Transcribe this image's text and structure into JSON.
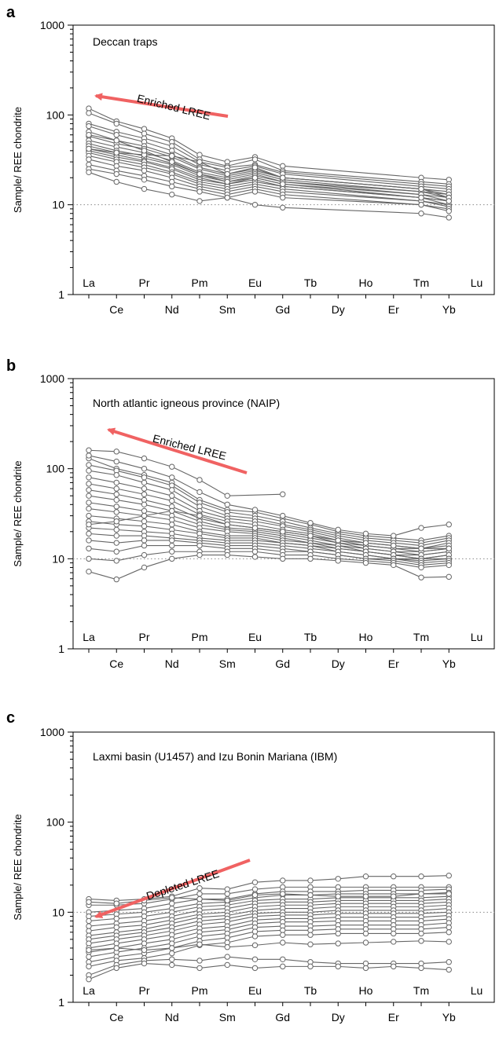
{
  "figure": {
    "ylabel": "Sample/ REE chondrite",
    "elements_top": [
      "La",
      "Pr",
      "Pm",
      "Eu",
      "Tb",
      "Ho",
      "Tm",
      "Lu"
    ],
    "elements_bottom": [
      "Ce",
      "Nd",
      "Sm",
      "Gd",
      "Dy",
      "Er",
      "Yb"
    ],
    "y_ticks": [
      "1",
      "10",
      "100",
      "1000"
    ]
  },
  "chart_data": [
    {
      "panel_letter": "a",
      "type": "line",
      "yscale": "log",
      "ylim": [
        1,
        1000
      ],
      "reference_line": 10,
      "title": "Deccan traps",
      "annotation": {
        "text": "Enriched LREE",
        "color": "#f06262",
        "direction": "toward La"
      },
      "x": [
        "La",
        "Ce",
        "Pr",
        "Nd",
        "Sm",
        "Eu",
        "Gd",
        "Tb",
        "Dy",
        "Ho",
        "Er",
        "Tm",
        "Yb",
        "Lu"
      ],
      "series": [
        {
          "values": [
            118,
            85,
            70,
            55,
            36,
            30,
            34,
            27,
            null,
            null,
            null,
            null,
            20,
            19
          ]
        },
        {
          "values": [
            105,
            80,
            62,
            50,
            32,
            27,
            32,
            24,
            null,
            null,
            null,
            null,
            18,
            17
          ]
        },
        {
          "values": [
            80,
            65,
            55,
            45,
            30,
            26,
            28,
            23,
            null,
            null,
            null,
            null,
            17,
            16
          ]
        },
        {
          "values": [
            75,
            60,
            50,
            40,
            28,
            24,
            27,
            22,
            null,
            null,
            null,
            null,
            16,
            15
          ]
        },
        {
          "values": [
            65,
            52,
            45,
            36,
            26,
            22,
            25,
            20,
            null,
            null,
            null,
            null,
            15,
            14
          ]
        },
        {
          "values": [
            58,
            48,
            42,
            34,
            25,
            21,
            24,
            20,
            null,
            null,
            null,
            null,
            15,
            13
          ]
        },
        {
          "values": [
            52,
            44,
            38,
            31,
            23,
            20,
            23,
            19,
            null,
            null,
            null,
            null,
            14,
            13
          ]
        },
        {
          "values": [
            48,
            40,
            35,
            29,
            22,
            19,
            22,
            18,
            null,
            null,
            null,
            null,
            14,
            12
          ]
        },
        {
          "values": [
            45,
            38,
            33,
            28,
            21,
            18,
            21,
            18,
            null,
            null,
            null,
            null,
            13,
            12
          ]
        },
        {
          "values": [
            42,
            36,
            31,
            26,
            20,
            17,
            20,
            17,
            null,
            null,
            null,
            null,
            13,
            11
          ]
        },
        {
          "values": [
            40,
            34,
            30,
            25,
            19,
            17,
            19,
            16,
            null,
            null,
            null,
            null,
            12,
            11
          ]
        },
        {
          "values": [
            38,
            32,
            28,
            23,
            18,
            16,
            18,
            16,
            null,
            null,
            null,
            null,
            12,
            10
          ]
        },
        {
          "values": [
            35,
            30,
            26,
            22,
            17,
            15,
            17,
            15,
            null,
            null,
            null,
            null,
            11,
            10
          ]
        },
        {
          "values": [
            32,
            27,
            24,
            20,
            16,
            14,
            16,
            14,
            null,
            null,
            null,
            null,
            11,
            9.5
          ]
        },
        {
          "values": [
            28,
            24,
            21,
            18,
            15,
            13,
            15,
            13,
            null,
            null,
            null,
            null,
            10,
            9
          ]
        },
        {
          "values": [
            25,
            22,
            19,
            16,
            14,
            12,
            14,
            12,
            null,
            null,
            null,
            null,
            10,
            8.5
          ]
        },
        {
          "values": [
            23,
            18,
            15,
            13,
            11,
            12,
            10,
            9.3,
            null,
            null,
            null,
            null,
            8,
            7.2
          ]
        },
        {
          "values": [
            42,
            38,
            36,
            35,
            30,
            22,
            26,
            20,
            null,
            null,
            null,
            null,
            15,
            12
          ]
        },
        {
          "values": [
            60,
            52,
            40,
            30,
            22,
            18,
            20,
            17,
            null,
            null,
            null,
            null,
            12,
            11
          ]
        }
      ]
    },
    {
      "panel_letter": "b",
      "type": "line",
      "yscale": "log",
      "ylim": [
        1,
        1000
      ],
      "reference_line": 10,
      "title": "North atlantic igneous province (NAIP)",
      "annotation": {
        "text": "Enriched LREE",
        "color": "#f06262",
        "direction": "toward La"
      },
      "x": [
        "La",
        "Ce",
        "Pr",
        "Nd",
        "Sm",
        "Eu",
        "Gd",
        "Tb",
        "Dy",
        "Ho",
        "Er",
        "Tm",
        "Yb",
        "Lu"
      ],
      "series": [
        {
          "values": [
            160,
            155,
            130,
            105,
            75,
            50,
            null,
            52,
            null,
            null,
            null,
            null,
            null,
            null
          ]
        },
        {
          "values": [
            130,
            100,
            85,
            70,
            45,
            35,
            33,
            28,
            24,
            20,
            18,
            17,
            16,
            18
          ]
        },
        {
          "values": [
            110,
            95,
            80,
            65,
            42,
            33,
            30,
            26,
            22,
            19,
            17,
            16,
            15,
            17
          ]
        },
        {
          "values": [
            95,
            85,
            70,
            58,
            38,
            30,
            28,
            24,
            21,
            18,
            16,
            15,
            14,
            16
          ]
        },
        {
          "values": [
            80,
            70,
            60,
            50,
            34,
            28,
            26,
            23,
            20,
            17,
            15,
            14,
            13,
            15
          ]
        },
        {
          "values": [
            68,
            60,
            52,
            44,
            31,
            26,
            24,
            21,
            19,
            16,
            14,
            13,
            13,
            14
          ]
        },
        {
          "values": [
            58,
            52,
            45,
            38,
            28,
            24,
            22,
            20,
            18,
            15,
            14,
            13,
            12,
            13
          ]
        },
        {
          "values": [
            50,
            45,
            40,
            34,
            26,
            22,
            21,
            19,
            17,
            15,
            13,
            12,
            12,
            13
          ]
        },
        {
          "values": [
            42,
            38,
            34,
            30,
            24,
            21,
            20,
            18,
            16,
            14,
            13,
            12,
            11,
            12
          ]
        },
        {
          "values": [
            36,
            33,
            30,
            27,
            22,
            20,
            19,
            17,
            15,
            14,
            12,
            11,
            11,
            12
          ]
        },
        {
          "values": [
            30,
            28,
            26,
            24,
            20,
            18,
            18,
            16,
            15,
            13,
            12,
            11,
            10,
            11
          ]
        },
        {
          "values": [
            26,
            24,
            23,
            21,
            19,
            17,
            17,
            15,
            14,
            13,
            12,
            11,
            10,
            11
          ]
        },
        {
          "values": [
            22,
            21,
            20,
            19,
            17,
            16,
            16,
            15,
            14,
            12,
            11,
            10,
            10,
            10
          ]
        },
        {
          "values": [
            19,
            18,
            18,
            17,
            16,
            15,
            15,
            14,
            13,
            12,
            11,
            10,
            9.5,
            10
          ]
        },
        {
          "values": [
            16,
            15,
            16,
            16,
            15,
            14,
            14,
            13,
            12,
            11,
            10,
            10,
            9,
            9.5
          ]
        },
        {
          "values": [
            13,
            12,
            14,
            14,
            14,
            13,
            13,
            12,
            12,
            11,
            10,
            9.5,
            8.5,
            9
          ]
        },
        {
          "values": [
            10,
            9.5,
            11,
            12,
            12,
            12,
            12,
            11,
            11,
            10,
            9.5,
            9,
            8,
            8.5
          ]
        },
        {
          "values": [
            7.2,
            5.9,
            8,
            10,
            11,
            11,
            10.5,
            10,
            10,
            9.5,
            9,
            8.5,
            6.2,
            6.3
          ]
        },
        {
          "values": [
            24,
            26,
            30,
            34,
            30,
            24,
            22,
            20,
            18,
            16,
            15,
            14,
            13,
            13
          ]
        },
        {
          "values": [
            140,
            120,
            100,
            80,
            55,
            40,
            35,
            30,
            25,
            21,
            19,
            18,
            22,
            24
          ]
        }
      ]
    },
    {
      "panel_letter": "c",
      "type": "line",
      "yscale": "log",
      "ylim": [
        1,
        1000
      ],
      "reference_line": 10,
      "title": "Laxmi basin (U1457) and Izu Bonin Mariana (IBM)",
      "annotation": {
        "text": "Depleted LREE",
        "color": "#f06262",
        "direction": "toward La"
      },
      "x": [
        "La",
        "Ce",
        "Pr",
        "Nd",
        "Sm",
        "Eu",
        "Gd",
        "Tb",
        "Dy",
        "Ho",
        "Er",
        "Tm",
        "Yb",
        "Lu"
      ],
      "series": [
        {
          "values": [
            14,
            13.5,
            14,
            15,
            18.5,
            18,
            21.5,
            22.5,
            22.5,
            23.5,
            25,
            25,
            25,
            25.5
          ]
        },
        {
          "values": [
            12,
            12,
            12.5,
            14,
            16,
            16,
            18,
            19,
            19,
            19,
            19,
            19,
            19,
            19
          ]
        },
        {
          "values": [
            10,
            10.5,
            11,
            12.5,
            14,
            14,
            16,
            17,
            17,
            17,
            17.5,
            17.5,
            17.5,
            18
          ]
        },
        {
          "values": [
            9,
            9.5,
            10,
            11,
            12.5,
            13,
            14.5,
            15.5,
            15.5,
            16,
            16,
            16,
            16,
            16.5
          ]
        },
        {
          "values": [
            8,
            8.5,
            9,
            10,
            11.5,
            12,
            13.5,
            14,
            14,
            14.5,
            14.5,
            14.5,
            14.5,
            15
          ]
        },
        {
          "values": [
            7,
            7.5,
            8,
            9,
            10.5,
            11,
            12.5,
            13,
            13,
            13.5,
            13.5,
            13.5,
            13.5,
            14
          ]
        },
        {
          "values": [
            6.2,
            6.8,
            7.2,
            8.2,
            9.5,
            10,
            11.5,
            12,
            12,
            12.5,
            12.5,
            12.5,
            12.5,
            13
          ]
        },
        {
          "values": [
            5.5,
            6,
            6.5,
            7.5,
            8.8,
            9.2,
            10.5,
            11,
            11,
            11.5,
            11.5,
            11.5,
            11.5,
            12
          ]
        },
        {
          "values": [
            5,
            5.5,
            6,
            6.8,
            8,
            8.5,
            9.7,
            10,
            10,
            10.5,
            10.5,
            10.5,
            10.5,
            11
          ]
        },
        {
          "values": [
            4.5,
            5,
            5.5,
            6.2,
            7.3,
            7.8,
            9,
            9.3,
            9.3,
            9.7,
            9.7,
            9.7,
            9.7,
            10
          ]
        },
        {
          "values": [
            4,
            4.5,
            5,
            5.6,
            6.6,
            7,
            8.2,
            8.5,
            8.5,
            8.8,
            8.8,
            8.8,
            8.8,
            9.2
          ]
        },
        {
          "values": [
            3.6,
            4,
            4.5,
            5,
            6,
            6.4,
            7.5,
            7.8,
            7.8,
            8,
            8,
            8,
            8,
            8.4
          ]
        },
        {
          "values": [
            3.2,
            3.6,
            4,
            4.5,
            5.4,
            5.8,
            6.8,
            7,
            7,
            7.2,
            7.2,
            7.2,
            7.2,
            7.6
          ]
        },
        {
          "values": [
            2.8,
            3.2,
            3.5,
            4,
            4.8,
            5.2,
            6.1,
            6.3,
            6.3,
            6.5,
            6.5,
            6.5,
            6.5,
            6.8
          ]
        },
        {
          "values": [
            2.5,
            2.9,
            3.1,
            3.5,
            4.3,
            4.6,
            5.4,
            5.6,
            5.6,
            5.8,
            5.8,
            5.8,
            5.8,
            6
          ]
        },
        {
          "values": [
            2,
            2.6,
            2.9,
            3,
            2.9,
            3.2,
            3,
            3,
            2.8,
            2.7,
            2.7,
            2.7,
            2.7,
            2.8
          ]
        },
        {
          "values": [
            1.8,
            2.4,
            2.7,
            2.6,
            2.4,
            2.6,
            2.4,
            2.5,
            2.5,
            2.5,
            2.4,
            2.5,
            2.4,
            2.3
          ]
        },
        {
          "values": [
            3.8,
            4,
            3.8,
            4,
            4.4,
            4.1,
            4.3,
            4.6,
            4.4,
            4.5,
            4.6,
            4.7,
            4.8,
            4.7
          ]
        },
        {
          "values": [
            13,
            12.5,
            13.5,
            14.5,
            14,
            13.5,
            15.5,
            16,
            15.5,
            15,
            15,
            15,
            16,
            16
          ]
        }
      ]
    }
  ]
}
